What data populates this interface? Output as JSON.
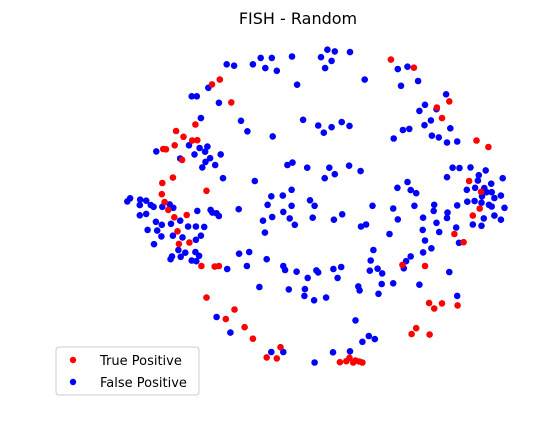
{
  "chart_data": {
    "type": "scatter",
    "title": "FISH - Random",
    "xlabel": "",
    "ylabel": "",
    "axes_visible": false,
    "grid": false,
    "xlim": [
      0,
      100
    ],
    "ylim": [
      0,
      100
    ],
    "legend_position": "bottom-left",
    "series": [
      {
        "name": "True Positive",
        "color": "#ff0000",
        "points": [
          [
            33.0,
            90.4
          ],
          [
            31.3,
            89.0
          ],
          [
            27.7,
            77.2
          ],
          [
            35.5,
            83.7
          ],
          [
            23.5,
            75.3
          ],
          [
            25.1,
            73.6
          ],
          [
            23.2,
            71.1
          ],
          [
            27.0,
            72.5
          ],
          [
            28.1,
            72.6
          ],
          [
            20.7,
            70.0
          ],
          [
            21.3,
            69.9
          ],
          [
            24.8,
            66.8
          ],
          [
            22.8,
            61.6
          ],
          [
            20.5,
            60.0
          ],
          [
            20.4,
            56.7
          ],
          [
            30.1,
            57.7
          ],
          [
            21.0,
            54.4
          ],
          [
            21.8,
            52.1
          ],
          [
            25.8,
            50.6
          ],
          [
            23.1,
            49.9
          ],
          [
            23.8,
            45.8
          ],
          [
            24.1,
            42.1
          ],
          [
            26.4,
            42.5
          ],
          [
            29.0,
            35.6
          ],
          [
            31.9,
            35.4
          ],
          [
            32.8,
            35.6
          ],
          [
            30.1,
            26.3
          ],
          [
            34.3,
            20.0
          ],
          [
            36.2,
            22.8
          ],
          [
            38.4,
            17.6
          ],
          [
            40.2,
            14.2
          ],
          [
            46.2,
            11.7
          ],
          [
            43.2,
            8.7
          ],
          [
            45.4,
            8.4
          ],
          [
            59.1,
            7.3
          ],
          [
            60.5,
            7.6
          ],
          [
            61.2,
            8.6
          ],
          [
            62.0,
            7.2
          ],
          [
            62.5,
            7.8
          ],
          [
            63.3,
            7.5
          ],
          [
            64.0,
            7.2
          ],
          [
            70.2,
            96.3
          ],
          [
            75.2,
            93.9
          ],
          [
            80.2,
            82.2
          ],
          [
            81.3,
            79.1
          ],
          [
            82.9,
            84.0
          ],
          [
            88.8,
            72.5
          ],
          [
            91.4,
            70.6
          ],
          [
            87.2,
            60.6
          ],
          [
            89.8,
            57.4
          ],
          [
            89.5,
            52.5
          ],
          [
            88.0,
            50.4
          ],
          [
            84.0,
            45.0
          ],
          [
            86.0,
            42.6
          ],
          [
            77.6,
            35.6
          ],
          [
            72.7,
            35.9
          ],
          [
            78.5,
            24.7
          ],
          [
            79.6,
            23.1
          ],
          [
            81.3,
            24.6
          ],
          [
            84.7,
            24.0
          ],
          [
            75.7,
            17.3
          ],
          [
            74.7,
            15.6
          ],
          [
            78.6,
            15.4
          ]
        ]
      },
      {
        "name": "False Positive",
        "color": "#0000ff",
        "points": [
          [
            56.4,
            99.2
          ],
          [
            61.3,
            98.5
          ],
          [
            58.0,
            98.7
          ],
          [
            48.7,
            97.2
          ],
          [
            41.9,
            96.8
          ],
          [
            44.3,
            96.8
          ],
          [
            55.0,
            97.0
          ],
          [
            57.3,
            95.9
          ],
          [
            34.5,
            94.9
          ],
          [
            40.2,
            94.9
          ],
          [
            36.1,
            94.5
          ],
          [
            42.9,
            93.8
          ],
          [
            45.4,
            93.0
          ],
          [
            55.9,
            93.8
          ],
          [
            73.8,
            94.2
          ],
          [
            71.7,
            93.5
          ],
          [
            64.5,
            90.4
          ],
          [
            76.1,
            90.0
          ],
          [
            72.4,
            88.6
          ],
          [
            82.2,
            86.1
          ],
          [
            49.8,
            88.9
          ],
          [
            30.5,
            88.0
          ],
          [
            26.9,
            85.5
          ],
          [
            28.0,
            85.5
          ],
          [
            32.8,
            83.6
          ],
          [
            77.6,
            83.0
          ],
          [
            80.1,
            81.7
          ],
          [
            76.4,
            81.2
          ],
          [
            77.5,
            77.0
          ],
          [
            78.9,
            78.4
          ],
          [
            28.9,
            79.1
          ],
          [
            37.6,
            78.3
          ],
          [
            51.1,
            78.6
          ],
          [
            54.4,
            76.9
          ],
          [
            57.3,
            76.4
          ],
          [
            59.5,
            77.9
          ],
          [
            61.2,
            76.8
          ],
          [
            55.6,
            74.8
          ],
          [
            72.8,
            75.6
          ],
          [
            74.2,
            75.9
          ],
          [
            83.1,
            76.1
          ],
          [
            39.0,
            75.2
          ],
          [
            44.5,
            73.7
          ],
          [
            70.8,
            73.1
          ],
          [
            79.1,
            73.9
          ],
          [
            80.6,
            73.4
          ],
          [
            26.3,
            71.1
          ],
          [
            28.6,
            70.3
          ],
          [
            29.8,
            69.2
          ],
          [
            30.3,
            70.7
          ],
          [
            33.2,
            68.4
          ],
          [
            82.4,
            71.9
          ],
          [
            84.6,
            72.2
          ],
          [
            19.2,
            69.3
          ],
          [
            24.4,
            67.2
          ],
          [
            27.5,
            68.4
          ],
          [
            30.9,
            67.3
          ],
          [
            29.9,
            66.2
          ],
          [
            29.2,
            64.6
          ],
          [
            32.0,
            65.3
          ],
          [
            47.7,
            65.3
          ],
          [
            48.8,
            66.0
          ],
          [
            52.0,
            64.5
          ],
          [
            56.8,
            64.5
          ],
          [
            61.1,
            65.1
          ],
          [
            58.0,
            62.6
          ],
          [
            55.8,
            61.4
          ],
          [
            63.6,
            63.5
          ],
          [
            83.6,
            64.5
          ],
          [
            85.1,
            64.4
          ],
          [
            87.5,
            64.6
          ],
          [
            90.8,
            63.7
          ],
          [
            89.3,
            62.3
          ],
          [
            82.4,
            61.7
          ],
          [
            33.7,
            61.4
          ],
          [
            40.6,
            60.6
          ],
          [
            73.8,
            60.3
          ],
          [
            71.6,
            58.6
          ],
          [
            74.5,
            57.9
          ],
          [
            75.7,
            57.0
          ],
          [
            86.7,
            58.0
          ],
          [
            88.5,
            58.6
          ],
          [
            89.1,
            60.7
          ],
          [
            94.5,
            61.4
          ],
          [
            92.0,
            59.8
          ],
          [
            90.5,
            58.5
          ],
          [
            91.0,
            57.3
          ],
          [
            92.1,
            57.3
          ],
          [
            90.0,
            56.1
          ],
          [
            48.6,
            58.0
          ],
          [
            46.7,
            56.3
          ],
          [
            44.2,
            56.1
          ],
          [
            52.6,
            54.9
          ],
          [
            53.6,
            53.3
          ],
          [
            48.6,
            53.3
          ],
          [
            46.8,
            51.5
          ],
          [
            53.2,
            49.8
          ],
          [
            57.8,
            49.2
          ],
          [
            59.6,
            50.8
          ],
          [
            43.4,
            53.6
          ],
          [
            44.4,
            50.0
          ],
          [
            42.4,
            48.9
          ],
          [
            48.2,
            49.6
          ],
          [
            49.3,
            47.7
          ],
          [
            37.1,
            52.3
          ],
          [
            42.8,
            45.4
          ],
          [
            13.5,
            55.5
          ],
          [
            15.7,
            55.1
          ],
          [
            15.6,
            53.5
          ],
          [
            12.9,
            54.6
          ],
          [
            17.0,
            54.8
          ],
          [
            18.0,
            53.5
          ],
          [
            18.6,
            53.0
          ],
          [
            20.5,
            53.0
          ],
          [
            22.1,
            53.7
          ],
          [
            22.9,
            52.7
          ],
          [
            28.1,
            51.8
          ],
          [
            31.0,
            52.1
          ],
          [
            31.4,
            51.3
          ],
          [
            32.3,
            51.1
          ],
          [
            32.8,
            50.3
          ],
          [
            15.6,
            50.5
          ],
          [
            17.0,
            50.9
          ],
          [
            19.1,
            48.6
          ],
          [
            20.4,
            47.7
          ],
          [
            22.4,
            48.0
          ],
          [
            24.4,
            48.9
          ],
          [
            26.1,
            47.2
          ],
          [
            27.8,
            47.2
          ],
          [
            29.6,
            47.1
          ],
          [
            17.3,
            46.2
          ],
          [
            19.4,
            46.0
          ],
          [
            20.3,
            44.3
          ],
          [
            22.8,
            44.5
          ],
          [
            24.9,
            44.0
          ],
          [
            27.8,
            43.3
          ],
          [
            28.9,
            44.5
          ],
          [
            18.7,
            42.0
          ],
          [
            24.0,
            40.3
          ],
          [
            25.5,
            39.5
          ],
          [
            27.7,
            39.7
          ],
          [
            22.3,
            37.6
          ],
          [
            22.6,
            38.4
          ],
          [
            24.5,
            38.3
          ],
          [
            26.9,
            37.2
          ],
          [
            27.9,
            37.0
          ],
          [
            28.5,
            38.6
          ],
          [
            37.2,
            39.2
          ],
          [
            39.4,
            39.7
          ],
          [
            38.9,
            35.6
          ],
          [
            34.6,
            34.7
          ],
          [
            43.2,
            37.6
          ],
          [
            46.8,
            35.6
          ],
          [
            47.2,
            34.4
          ],
          [
            49.7,
            33.9
          ],
          [
            52.1,
            32.1
          ],
          [
            54.0,
            34.3
          ],
          [
            54.4,
            33.7
          ],
          [
            41.6,
            29.4
          ],
          [
            48.0,
            28.7
          ],
          [
            51.5,
            28.8
          ],
          [
            51.4,
            26.8
          ],
          [
            56.1,
            26.3
          ],
          [
            58.6,
            32.1
          ],
          [
            63.4,
            28.4
          ],
          [
            63.1,
            29.6
          ],
          [
            65.6,
            34.2
          ],
          [
            68.3,
            33.4
          ],
          [
            68.2,
            30.3
          ],
          [
            67.5,
            27.4
          ],
          [
            70.7,
            30.5
          ],
          [
            82.9,
            33.8
          ],
          [
            84.6,
            26.8
          ],
          [
            76.4,
            30.1
          ],
          [
            74.5,
            38.4
          ],
          [
            77.2,
            39.6
          ],
          [
            77.6,
            43.1
          ],
          [
            79.0,
            40.8
          ],
          [
            77.1,
            46.2
          ],
          [
            80.7,
            45.6
          ],
          [
            84.4,
            46.9
          ],
          [
            80.1,
            48.3
          ],
          [
            82.4,
            49.7
          ],
          [
            82.5,
            51.3
          ],
          [
            77.2,
            49.8
          ],
          [
            79.5,
            51.8
          ],
          [
            75.3,
            53.3
          ],
          [
            79.6,
            53.6
          ],
          [
            84.6,
            53.4
          ],
          [
            86.8,
            54.5
          ],
          [
            88.4,
            54.7
          ],
          [
            89.9,
            54.2
          ],
          [
            91.5,
            53.6
          ],
          [
            92.1,
            53.1
          ],
          [
            92.7,
            55.6
          ],
          [
            94.1,
            56.3
          ],
          [
            94.9,
            52.7
          ],
          [
            92.7,
            50.4
          ],
          [
            94.1,
            49.2
          ],
          [
            85.0,
            42.4
          ],
          [
            89.9,
            47.4
          ],
          [
            88.0,
            47.8
          ],
          [
            90.4,
            49.6
          ],
          [
            71.7,
            49.3
          ],
          [
            70.7,
            52.5
          ],
          [
            66.2,
            53.3
          ],
          [
            64.8,
            47.8
          ],
          [
            63.7,
            47.2
          ],
          [
            69.9,
            45.0
          ],
          [
            66.4,
            40.3
          ],
          [
            73.5,
            37.0
          ],
          [
            73.0,
            34.9
          ],
          [
            67.3,
            34.8
          ],
          [
            65.8,
            37.2
          ],
          [
            59.4,
            35.3
          ],
          [
            57.7,
            34.7
          ],
          [
            53.5,
            25.5
          ],
          [
            62.5,
            19.6
          ],
          [
            65.4,
            15.0
          ],
          [
            66.7,
            14.1
          ],
          [
            64.0,
            13.3
          ],
          [
            61.3,
            10.5
          ],
          [
            57.6,
            10.2
          ],
          [
            53.6,
            7.2
          ],
          [
            46.8,
            10.3
          ],
          [
            44.2,
            10.3
          ],
          [
            35.3,
            16.0
          ],
          [
            32.3,
            20.6
          ]
        ]
      }
    ]
  }
}
